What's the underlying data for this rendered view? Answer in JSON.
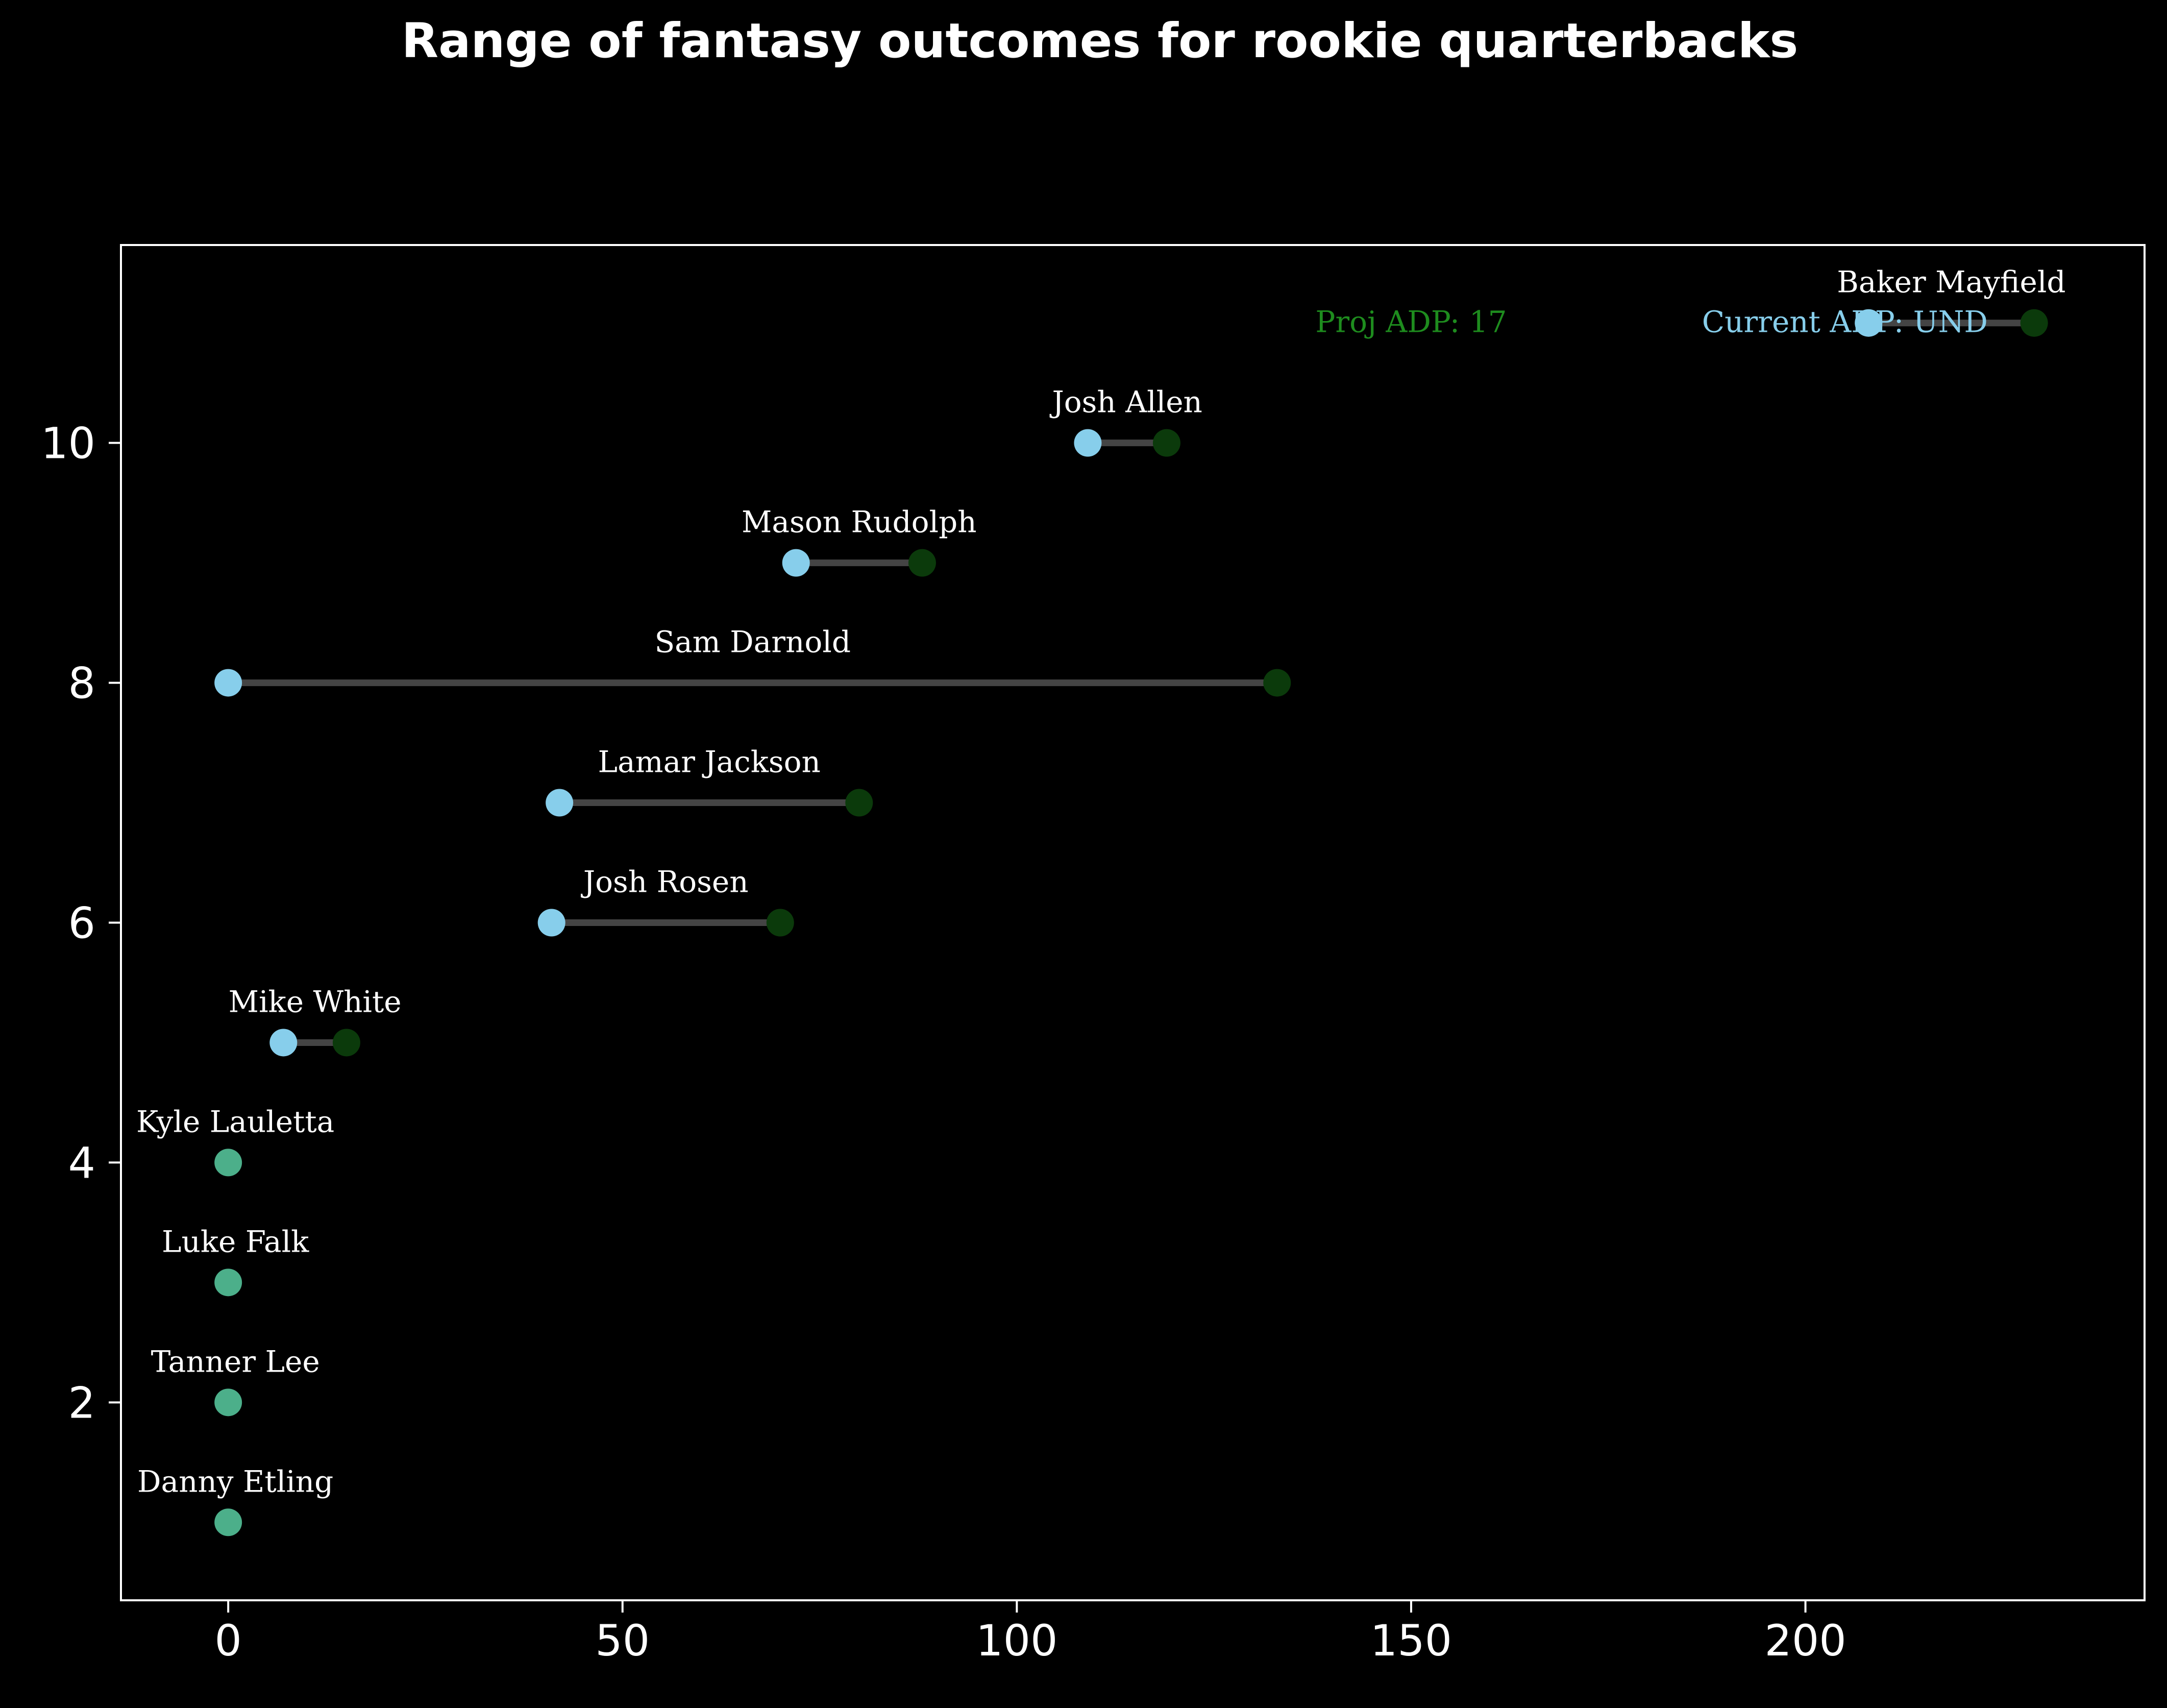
{
  "chart_data": {
    "type": "scatter",
    "title": "Range of fantasy outcomes for rookie quarterbacks",
    "xlabel": "",
    "ylabel": "",
    "xlim": [
      -13.6,
      243
    ],
    "ylim": [
      0.35,
      11.65
    ],
    "xticks": [
      0,
      50,
      100,
      150,
      200
    ],
    "yticks": [
      2,
      4,
      6,
      8,
      10
    ],
    "grid": false,
    "colors": {
      "current": "#87ceeb",
      "projected": "#0b3a0b",
      "no_range": "#4caf8a",
      "connector": "#444444",
      "proj_label": "#1e8c1e",
      "current_label": "#87ceeb"
    },
    "players": [
      {
        "name": "Danny Etling",
        "y": 1,
        "current": 0,
        "projected": null
      },
      {
        "name": "Tanner Lee",
        "y": 2,
        "current": 0,
        "projected": null
      },
      {
        "name": "Luke Falk",
        "y": 3,
        "current": 0,
        "projected": null
      },
      {
        "name": "Kyle Lauletta",
        "y": 4,
        "current": 0,
        "projected": null
      },
      {
        "name": "Mike White",
        "y": 5,
        "current": 7,
        "projected": 15
      },
      {
        "name": "Josh Rosen",
        "y": 6,
        "current": 41,
        "projected": 70
      },
      {
        "name": "Lamar Jackson",
        "y": 7,
        "current": 42,
        "projected": 80
      },
      {
        "name": "Sam Darnold",
        "y": 8,
        "current": 0,
        "projected": 133
      },
      {
        "name": "Mason Rudolph",
        "y": 9,
        "current": 72,
        "projected": 88
      },
      {
        "name": "Josh Allen",
        "y": 10,
        "current": 109,
        "projected": 119
      },
      {
        "name": "Baker Mayfield",
        "y": 11,
        "current": 208,
        "projected": 229
      }
    ],
    "annotations": [
      {
        "text": "Proj ADP: 17",
        "x": 150,
        "y": 11,
        "kind": "proj"
      },
      {
        "text": "Current ADP: UND",
        "x": 205,
        "y": 11,
        "kind": "current"
      }
    ]
  }
}
